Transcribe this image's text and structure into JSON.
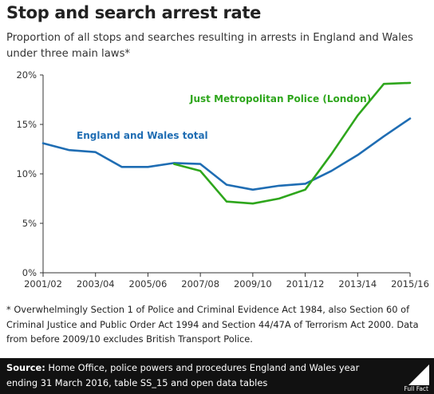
{
  "header": {
    "title": "Stop and search arrest rate",
    "subtitle": "Proportion of all stops and searches resulting in arrests in England and Wales under three main laws*"
  },
  "chart_data": {
    "type": "line",
    "x": [
      "2001/02",
      "2002/03",
      "2003/04",
      "2004/05",
      "2005/06",
      "2006/07",
      "2007/08",
      "2008/09",
      "2009/10",
      "2010/11",
      "2011/12",
      "2012/13",
      "2013/14",
      "2014/15",
      "2015/16"
    ],
    "x_tick_labels": [
      "2001/02",
      "2003/04",
      "2005/06",
      "2007/08",
      "2009/10",
      "2011/12",
      "2013/14",
      "2015/16"
    ],
    "y_tick_labels": [
      "0%",
      "5%",
      "10%",
      "15%",
      "20%"
    ],
    "ylim": [
      0,
      20
    ],
    "y_unit": "%",
    "grid": false,
    "series": [
      {
        "name": "England and Wales total",
        "color": "#1f6db3",
        "values": [
          13.1,
          12.4,
          12.2,
          10.7,
          10.7,
          11.1,
          11.0,
          8.9,
          8.4,
          8.8,
          9.0,
          10.3,
          11.9,
          13.8,
          15.6
        ]
      },
      {
        "name": "Just Metropolitan Police (London)",
        "color": "#2ea61c",
        "values": [
          null,
          null,
          null,
          null,
          null,
          11.0,
          10.3,
          7.2,
          7.0,
          7.5,
          8.4,
          12.0,
          15.9,
          19.1,
          19.2
        ]
      }
    ]
  },
  "footnote": "* Overwhelmingly Section 1 of Police and Criminal Evidence Act 1984, also Section 60 of Criminal Justice and Public Order Act 1994 and Section 44/47A of Terrorism Act 2000. Data from before 2009/10 excludes British Transport Police.",
  "source": {
    "label": "Source:",
    "text": " Home Office, police powers and procedures England and Wales year ending 31 March 2016, table SS_15 and open data tables"
  },
  "logo": {
    "text": "Full Fact",
    "icon": "full-fact-logo-icon"
  }
}
